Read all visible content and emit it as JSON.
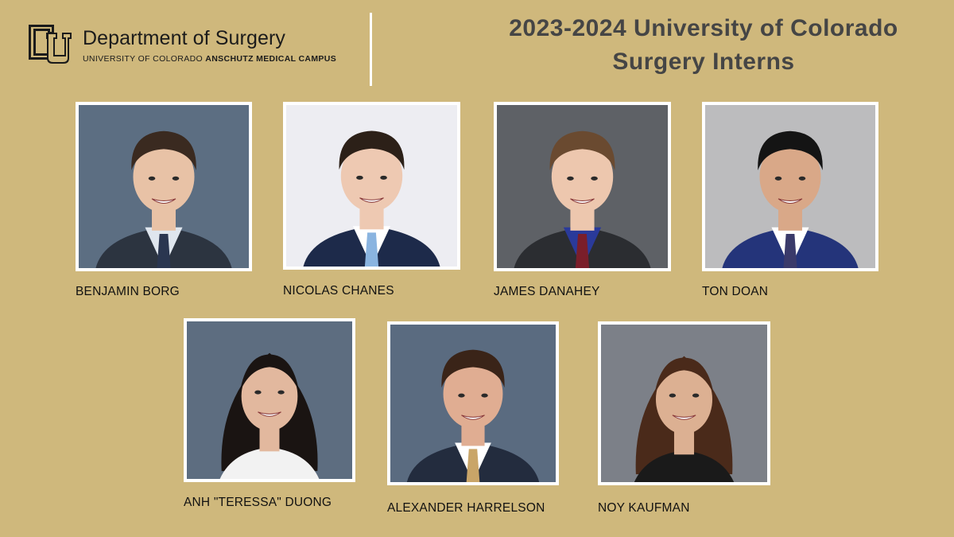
{
  "header": {
    "department": "Department of Surgery",
    "campus_prefix": "UNIVERSITY OF COLORADO ",
    "campus_bold": "ANSCHUTZ MEDICAL CAMPUS",
    "title_line1": "2023-2024 University of Colorado",
    "title_line2": "Surgery Interns"
  },
  "colors": {
    "background": "#cfb87c",
    "title": "#454545",
    "frame": "#ffffff"
  },
  "interns": [
    {
      "name": "BENJAMIN BORG",
      "photo_bg": "#5c6e82",
      "hair": "#3a2a20",
      "skin": "#e8c2a6",
      "suit": "#2c3440",
      "shirt": "#dfe6ee",
      "tie": "#2a3650"
    },
    {
      "name": "NICOLAS CHANES",
      "photo_bg": "#ededf2",
      "hair": "#2c2018",
      "skin": "#eec9b2",
      "suit": "#1d2a4a",
      "shirt": "#ffffff",
      "tie": "#8ab4e0"
    },
    {
      "name": "JAMES DANAHEY",
      "photo_bg": "#5e6166",
      "hair": "#6a4a30",
      "skin": "#edc7ae",
      "suit": "#2b2d31",
      "shirt": "#2a3a9a",
      "tie": "#7a1e2a"
    },
    {
      "name": "TON DOAN",
      "photo_bg": "#bcbcbe",
      "hair": "#141414",
      "skin": "#d9a888",
      "suit": "#24347a",
      "shirt": "#ffffff",
      "tie": "#3a3a6a"
    },
    {
      "name": "ANH \"TERESSA\" DUONG",
      "photo_bg": "#5d6d80",
      "hair": "#1a1412",
      "skin": "#e2b89e",
      "suit": "#f2f2f2",
      "shirt": "#f2f2f2",
      "tie": "#f2f2f2"
    },
    {
      "name": "ALEXANDER HARRELSON",
      "photo_bg": "#5a6b80",
      "hair": "#3a2418",
      "skin": "#e0ad92",
      "suit": "#232c3e",
      "shirt": "#ffffff",
      "tie": "#c9a568"
    },
    {
      "name": "NOY KAUFMAN",
      "photo_bg": "#7c8088",
      "hair": "#4a2a1a",
      "skin": "#dcb092",
      "suit": "#1a1a1a",
      "shirt": "#ffffff",
      "tie": "#1a1a1a"
    }
  ]
}
